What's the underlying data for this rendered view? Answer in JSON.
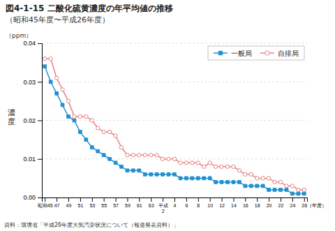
{
  "chart_data": {
    "type": "line",
    "title": "図4-1-15  二酸化硫黄濃度の年平均値の推移",
    "subtitle": "（昭和45年度〜平成26年度）",
    "ylabel": "濃\n度",
    "annotations": [
      "（ppm）",
      "資料：環境省「平成26年度大気汚染状況について（報道発表資料）」"
    ],
    "categories": [
      "昭和45",
      null,
      "47",
      null,
      "49",
      null,
      "51",
      null,
      "53",
      null,
      "55",
      null,
      "57",
      null,
      "59",
      null,
      "61",
      null,
      "63",
      null,
      "平成\n2",
      null,
      "4",
      null,
      "6",
      null,
      "8",
      null,
      "10",
      null,
      "12",
      null,
      "14",
      null,
      "16",
      null,
      "18",
      null,
      "20",
      null,
      "22",
      null,
      "24",
      null,
      "26（年度）"
    ],
    "series": [
      {
        "name": "一般局",
        "color": "#2090d0",
        "marker": "square",
        "values": [
          0.034,
          0.03,
          0.027,
          0.024,
          0.021,
          0.02,
          0.017,
          0.015,
          0.013,
          0.012,
          0.011,
          0.01,
          0.009,
          0.008,
          0.007,
          0.007,
          0.007,
          0.006,
          0.006,
          0.006,
          0.006,
          0.006,
          0.006,
          0.005,
          0.005,
          0.005,
          0.005,
          0.005,
          0.005,
          0.004,
          0.004,
          0.004,
          0.004,
          0.004,
          0.003,
          0.003,
          0.003,
          0.003,
          0.002,
          0.002,
          0.002,
          0.002,
          0.001,
          0.001,
          0.001
        ]
      },
      {
        "name": "自排局",
        "color": "#e88080",
        "marker": "circle",
        "values": [
          0.036,
          0.036,
          0.031,
          0.028,
          0.025,
          0.021,
          0.021,
          0.021,
          0.02,
          0.018,
          0.017,
          0.017,
          0.016,
          0.013,
          0.011,
          0.011,
          0.011,
          0.011,
          0.011,
          0.011,
          0.01,
          0.01,
          0.01,
          0.009,
          0.009,
          0.009,
          0.009,
          0.008,
          0.009,
          0.008,
          0.008,
          0.008,
          0.008,
          0.007,
          0.006,
          0.006,
          0.005,
          0.005,
          0.005,
          0.004,
          0.004,
          0.003,
          0.003,
          0.002,
          0.002
        ]
      }
    ],
    "ylim": [
      0,
      0.04
    ],
    "yticks": [
      {
        "value": 0,
        "label": "0.00"
      },
      0.01,
      0.02,
      0.03,
      0.04
    ],
    "grid": true,
    "legend": "upper right"
  }
}
